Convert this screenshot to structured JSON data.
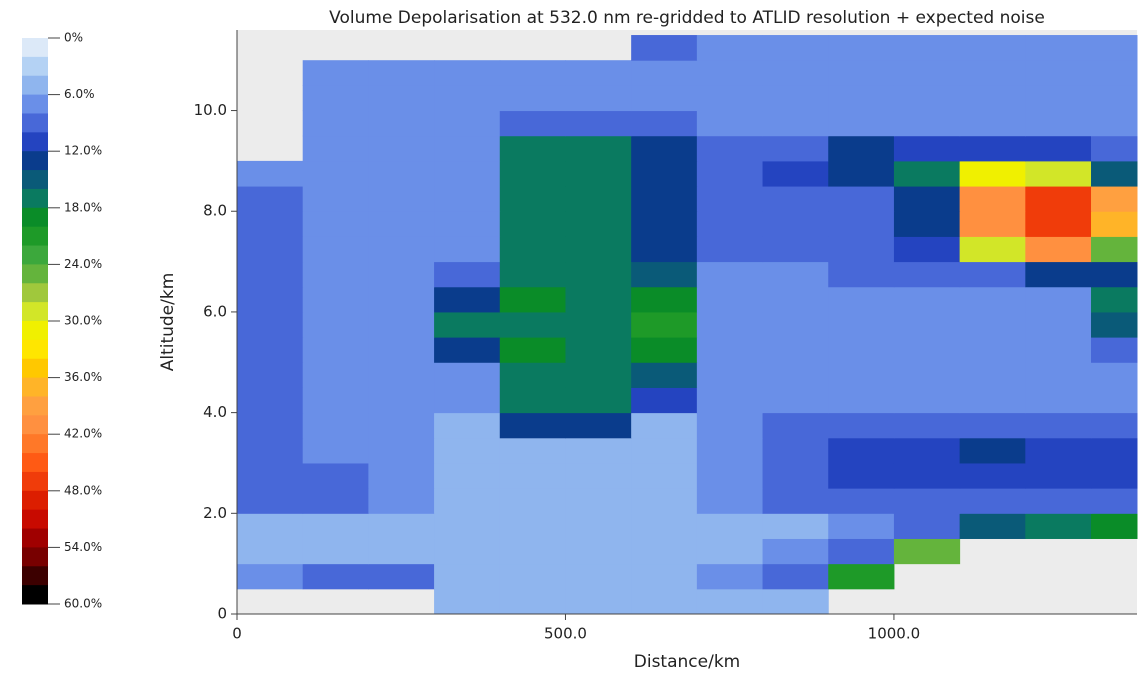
{
  "chart_data": {
    "type": "heatmap",
    "title": "Volume Depolarisation at 532.0 nm  re-gridded to ATLID resolution + expected noise",
    "x_label": "Distance/km",
    "y_label": "Altitude/km",
    "xlim": [
      0,
      1370
    ],
    "ylim": [
      0,
      11.6
    ],
    "xticks": [
      0,
      {
        "value": 500,
        "label": "500.0"
      },
      {
        "value": 1000,
        "label": "1000.0"
      }
    ],
    "yticks": [
      0,
      {
        "value": 2,
        "label": "2.0"
      },
      {
        "value": 4,
        "label": "4.0"
      },
      {
        "value": 6,
        "label": "6.0"
      },
      {
        "value": 8,
        "label": "8.0"
      },
      {
        "value": 10,
        "label": "10.0"
      }
    ],
    "xbins": [
      0,
      100,
      200,
      300,
      400,
      500,
      600,
      700,
      800,
      900,
      1000,
      1100,
      1200,
      1300,
      1370
    ],
    "ybins": [
      0,
      0.5,
      1,
      1.5,
      2,
      2.5,
      3,
      3.5,
      4,
      4.5,
      5,
      5.5,
      6,
      6.5,
      7,
      7.5,
      8,
      8.5,
      9,
      9.5,
      10,
      10.5,
      11,
      11.5
    ],
    "values": [
      [
        null,
        null,
        null,
        4,
        4,
        4,
        4,
        4,
        4,
        null,
        null,
        null,
        null,
        null
      ],
      [
        6,
        8,
        8,
        4,
        4,
        4,
        4,
        6,
        8,
        20,
        null,
        null,
        null,
        null
      ],
      [
        4,
        4,
        4,
        4,
        4,
        4,
        4,
        4,
        6,
        8,
        24,
        null,
        null,
        null
      ],
      [
        4,
        4,
        4,
        4,
        4,
        4,
        4,
        4,
        4,
        6,
        8,
        14,
        16,
        18
      ],
      [
        8,
        8,
        6,
        4,
        4,
        4,
        4,
        6,
        8,
        8,
        8,
        8,
        8,
        8
      ],
      [
        8,
        8,
        6,
        4,
        4,
        4,
        4,
        6,
        8,
        10,
        10,
        10,
        10,
        10
      ],
      [
        8,
        6,
        6,
        4,
        4,
        4,
        4,
        6,
        8,
        10,
        10,
        12,
        10,
        10
      ],
      [
        8,
        6,
        6,
        4,
        12,
        12,
        4,
        6,
        8,
        8,
        8,
        8,
        8,
        8
      ],
      [
        8,
        6,
        6,
        6,
        16,
        16,
        10,
        6,
        6,
        6,
        6,
        6,
        6,
        6
      ],
      [
        8,
        6,
        6,
        6,
        16,
        16,
        14,
        6,
        6,
        6,
        6,
        6,
        6,
        6
      ],
      [
        8,
        6,
        6,
        12,
        18,
        16,
        18,
        6,
        6,
        6,
        6,
        6,
        6,
        8
      ],
      [
        8,
        6,
        6,
        16,
        16,
        16,
        20,
        6,
        6,
        6,
        6,
        6,
        6,
        14
      ],
      [
        8,
        6,
        6,
        12,
        18,
        16,
        18,
        6,
        6,
        6,
        6,
        6,
        6,
        16
      ],
      [
        8,
        6,
        6,
        8,
        16,
        16,
        14,
        6,
        6,
        8,
        8,
        8,
        12,
        12
      ],
      [
        8,
        6,
        6,
        6,
        16,
        16,
        12,
        8,
        8,
        8,
        10,
        28,
        40,
        24
      ],
      [
        8,
        6,
        6,
        6,
        16,
        16,
        12,
        8,
        8,
        8,
        12,
        40,
        46,
        36
      ],
      [
        8,
        6,
        6,
        6,
        16,
        16,
        12,
        8,
        8,
        8,
        12,
        40,
        46,
        38
      ],
      [
        6,
        6,
        6,
        6,
        16,
        16,
        12,
        8,
        10,
        12,
        16,
        30,
        28,
        14
      ],
      [
        null,
        6,
        6,
        6,
        16,
        16,
        12,
        8,
        8,
        12,
        10,
        10,
        10,
        8
      ],
      [
        null,
        6,
        6,
        6,
        8,
        8,
        8,
        6,
        6,
        6,
        6,
        6,
        6,
        6
      ],
      [
        null,
        6,
        6,
        6,
        6,
        6,
        6,
        6,
        6,
        6,
        6,
        6,
        6,
        6
      ],
      [
        null,
        6,
        6,
        6,
        6,
        6,
        6,
        6,
        6,
        6,
        6,
        6,
        6,
        6
      ],
      [
        null,
        null,
        null,
        null,
        null,
        null,
        8,
        6,
        6,
        6,
        6,
        6,
        6,
        6
      ]
    ],
    "colorbar": {
      "lim": [
        0,
        60
      ],
      "ticks": [
        {
          "value": 0,
          "label": "0%"
        },
        {
          "value": 6,
          "label": "6.0%"
        },
        {
          "value": 12,
          "label": "12.0%"
        },
        {
          "value": 18,
          "label": "18.0%"
        },
        {
          "value": 24,
          "label": "24.0%"
        },
        {
          "value": 30,
          "label": "30.0%"
        },
        {
          "value": 36,
          "label": "36.0%"
        },
        {
          "value": 42,
          "label": "42.0%"
        },
        {
          "value": 48,
          "label": "48.0%"
        },
        {
          "value": 54,
          "label": "54.0%"
        },
        {
          "value": 60,
          "label": "60.0%"
        }
      ],
      "colors": [
        "#dce9f8",
        "#b4d2f4",
        "#8fb5ee",
        "#6a8fe8",
        "#4868d8",
        "#2444c0",
        "#0a3c8c",
        "#0a5a78",
        "#0a7a60",
        "#0a8c28",
        "#1e9a28",
        "#3ca83c",
        "#64b43c",
        "#a0c83c",
        "#d2e628",
        "#f0f000",
        "#ffe600",
        "#ffc800",
        "#ffb428",
        "#ffa040",
        "#ff9040",
        "#ff7828",
        "#ff5a14",
        "#f03c0a",
        "#dc1e00",
        "#c80a00",
        "#a00000",
        "#780000",
        "#3c0000",
        "#000000"
      ]
    }
  }
}
